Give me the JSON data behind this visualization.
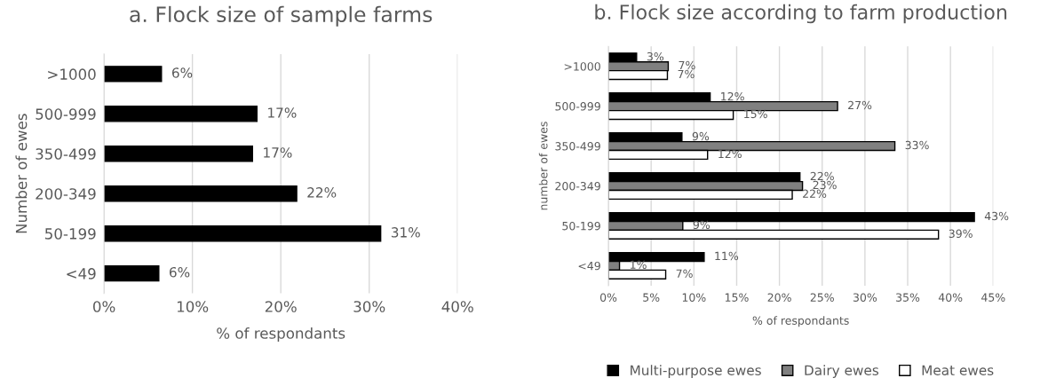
{
  "chart_data": [
    {
      "type": "bar",
      "orientation": "horizontal",
      "title": "a. Flock size of sample farms",
      "xlabel": "% of respondants",
      "ylabel": "Number of ewes",
      "categories": [
        ">1000",
        "500-999",
        "350-499",
        "200-349",
        "50-199",
        "<49"
      ],
      "series": [
        {
          "color": "#000000",
          "values": [
            6.5,
            17.3,
            16.8,
            21.8,
            31.3,
            6.2
          ],
          "value_labels": [
            "6%",
            "17%",
            "17%",
            "22%",
            "31%",
            "6%"
          ]
        }
      ],
      "xlim": [
        0,
        40
      ],
      "xticks": [
        {
          "value": 0,
          "label": "0%"
        },
        {
          "value": 10,
          "label": "10%"
        },
        {
          "value": 20,
          "label": "20%"
        },
        {
          "value": 30,
          "label": "30%"
        },
        {
          "value": 40,
          "label": "40%"
        }
      ],
      "grid": "x",
      "legend": false
    },
    {
      "type": "bar",
      "orientation": "horizontal",
      "title": "b. Flock size according to farm production",
      "xlabel": "% of respondants",
      "ylabel": "number of ewes",
      "categories": [
        ">1000",
        "500-999",
        "350-499",
        "200-349",
        "50-199",
        "<49"
      ],
      "series": [
        {
          "name": "Multi-purpose ewes",
          "color": "#000000",
          "values": [
            3.3,
            11.9,
            8.6,
            22.4,
            42.8,
            11.2
          ],
          "value_labels": [
            "3%",
            "12%",
            "9%",
            "22%",
            "43%",
            "11%"
          ]
        },
        {
          "name": "Dairy ewes",
          "color": "#808080",
          "values": [
            7.0,
            26.8,
            33.5,
            22.7,
            8.7,
            1.3
          ],
          "value_labels": [
            "7%",
            "27%",
            "33%",
            "23%",
            "9%",
            "1%"
          ]
        },
        {
          "name": "Meat ewes",
          "color": "#ffffff",
          "values": [
            6.9,
            14.6,
            11.6,
            21.5,
            38.6,
            6.7
          ],
          "value_labels": [
            "7%",
            "15%",
            "12%",
            "22%",
            "39%",
            "7%"
          ]
        }
      ],
      "xlim": [
        0,
        45
      ],
      "xticks": [
        {
          "value": 0,
          "label": "0%"
        },
        {
          "value": 5,
          "label": "5%"
        },
        {
          "value": 10,
          "label": "10%"
        },
        {
          "value": 15,
          "label": "15%"
        },
        {
          "value": 20,
          "label": "20%"
        },
        {
          "value": 25,
          "label": "25%"
        },
        {
          "value": 30,
          "label": "30%"
        },
        {
          "value": 35,
          "label": "35%"
        },
        {
          "value": 40,
          "label": "40%"
        },
        {
          "value": 45,
          "label": "45%"
        }
      ],
      "grid": "x",
      "legend": "bottom"
    }
  ]
}
